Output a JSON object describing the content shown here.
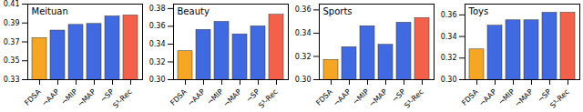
{
  "chart_data": [
    {
      "type": "bar",
      "title": "Meituan",
      "categories": [
        "FDSA",
        "¬AAP",
        "¬MIP",
        "¬MAP",
        "¬SP",
        "S³-Rec"
      ],
      "values": [
        0.374,
        0.382,
        0.388,
        0.389,
        0.397,
        0.398
      ],
      "colors": [
        "#f5a623",
        "#4169e1",
        "#4169e1",
        "#4169e1",
        "#4169e1",
        "#f4614a"
      ],
      "ylim": [
        0.33,
        0.41
      ],
      "yticks": [
        0.33,
        0.35,
        0.37,
        0.39,
        0.41
      ]
    },
    {
      "type": "bar",
      "title": "Beauty",
      "categories": [
        "FDSA",
        "¬AAP",
        "¬MIP",
        "¬MAP",
        "¬SP",
        "S³-Rec"
      ],
      "values": [
        0.332,
        0.356,
        0.365,
        0.351,
        0.36,
        0.373
      ],
      "colors": [
        "#f5a623",
        "#4169e1",
        "#4169e1",
        "#4169e1",
        "#4169e1",
        "#f4614a"
      ],
      "ylim": [
        0.3,
        0.385
      ],
      "yticks": [
        {
          "value": 0.3,
          "label": "0.30"
        },
        0.32,
        0.34,
        0.36,
        0.38
      ]
    },
    {
      "type": "bar",
      "title": "Sports",
      "categories": [
        "FDSA",
        "¬AAP",
        "¬MIP",
        "¬MAP",
        "¬SP",
        "S³-Rec"
      ],
      "values": [
        0.317,
        0.328,
        0.346,
        0.33,
        0.349,
        0.353
      ],
      "colors": [
        "#f5a623",
        "#4169e1",
        "#4169e1",
        "#4169e1",
        "#4169e1",
        "#f4614a"
      ],
      "ylim": [
        0.3,
        0.365
      ],
      "yticks": [
        {
          "value": 0.3,
          "label": "0.30"
        },
        0.32,
        0.34,
        0.36
      ]
    },
    {
      "type": "bar",
      "title": "Toys",
      "categories": [
        "FDSA",
        "¬AAP",
        "¬MIP",
        "¬MAP",
        "¬SP",
        "S³-Rec"
      ],
      "values": [
        0.328,
        0.35,
        0.355,
        0.355,
        0.362,
        0.362
      ],
      "colors": [
        "#f5a623",
        "#4169e1",
        "#4169e1",
        "#4169e1",
        "#4169e1",
        "#f4614a"
      ],
      "ylim": [
        0.3,
        0.37
      ],
      "yticks": [
        {
          "value": 0.3,
          "label": "0.30"
        },
        0.32,
        0.34,
        0.36
      ]
    }
  ]
}
